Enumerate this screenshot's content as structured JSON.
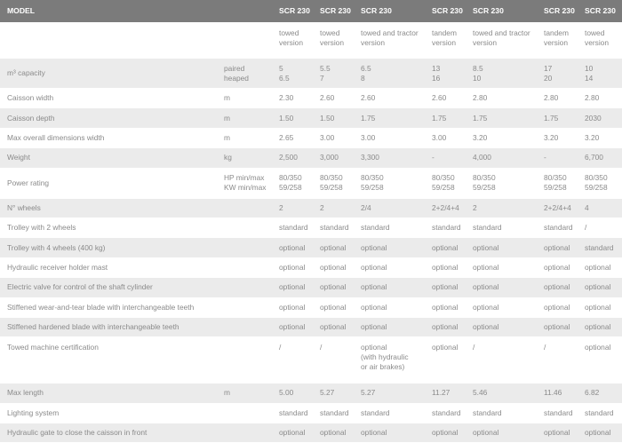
{
  "header": {
    "title": "MODEL",
    "models": [
      "SCR 230",
      "SCR 230",
      "SCR 230",
      "SCR 230",
      "SCR 230",
      "SCR 230",
      "SCR 230"
    ]
  },
  "versions": [
    "towed\nversion",
    "towed\nversion",
    "towed and tractor\nversion",
    "tandem\nversion",
    "towed and tractor\nversion",
    "tandem\nversion",
    "towed\nversion"
  ],
  "rows": [
    {
      "label": "m³ capacity",
      "unit": "paired\nheaped",
      "values": [
        "5\n6.5",
        "5.5\n7",
        "6.5\n8",
        "13\n16",
        "8.5\n10",
        "17\n20",
        "10\n14"
      ]
    },
    {
      "label": "Caisson width",
      "unit": "m",
      "values": [
        "2.30",
        "2.60",
        "2.60",
        "2.60",
        "2.80",
        "2.80",
        "2.80"
      ]
    },
    {
      "label": "Caisson depth",
      "unit": "m",
      "values": [
        "1.50",
        "1.50",
        "1.75",
        "1.75",
        "1.75",
        "1.75",
        "2030"
      ]
    },
    {
      "label": "Max overall dimensions width",
      "unit": "m",
      "values": [
        "2.65",
        "3.00",
        "3.00",
        "3.00",
        "3.20",
        "3.20",
        "3.20"
      ]
    },
    {
      "label": "Weight",
      "unit": "kg",
      "values": [
        "2,500",
        "3,000",
        "3,300",
        "-",
        "4,000",
        "-",
        "6,700"
      ]
    },
    {
      "label": "Power rating",
      "unit": "HP min/max\nKW min/max",
      "values": [
        "80/350\n59/258",
        "80/350\n59/258",
        "80/350\n59/258",
        "80/350\n59/258",
        "80/350\n59/258",
        "80/350\n59/258",
        "80/350\n59/258"
      ]
    },
    {
      "label": "N° wheels",
      "values": [
        "2",
        "2",
        "2/4",
        "2+2/4+4",
        "2",
        "2+2/4+4",
        "4"
      ]
    },
    {
      "label": "Trolley with 2 wheels",
      "values": [
        "standard",
        "standard",
        "standard",
        "standard",
        "standard",
        "standard",
        "/"
      ]
    },
    {
      "label": "Trolley with 4 wheels (400 kg)",
      "values": [
        "optional",
        "optional",
        "optional",
        "optional",
        "optional",
        "optional",
        "standard"
      ]
    },
    {
      "label": "Hydraulic receiver holder mast",
      "values": [
        "optional",
        "optional",
        "optional",
        "optional",
        "optional",
        "optional",
        "optional"
      ]
    },
    {
      "label": "Electric valve for control of the shaft cylinder",
      "values": [
        "optional",
        "optional",
        "optional",
        "optional",
        "optional",
        "optional",
        "optional"
      ]
    },
    {
      "label": "Stiffened wear-and-tear blade with interchangeable teeth",
      "values": [
        "optional",
        "optional",
        "optional",
        "optional",
        "optional",
        "optional",
        "optional"
      ]
    },
    {
      "label": "Stiffened hardened blade with interchangeable teeth",
      "values": [
        "optional",
        "optional",
        "optional",
        "optional",
        "optional",
        "optional",
        "optional"
      ]
    },
    {
      "label": "Towed machine certification",
      "values": [
        "/",
        "/",
        "optional\n(with hydraulic\nor air brakes)",
        "optional",
        "/",
        "/",
        "optional"
      ]
    },
    {
      "label": "Max length",
      "unit": "m",
      "values": [
        "5.00",
        "5.27",
        "5.27",
        "11.27",
        "5.46",
        "11.46",
        "6.82"
      ]
    },
    {
      "label": "Lighting system",
      "values": [
        "standard",
        "standard",
        "standard",
        "standard",
        "standard",
        "standard",
        "standard"
      ]
    },
    {
      "label": "Hydraulic gate to close the caisson in front",
      "values": [
        "optional",
        "optional",
        "optional",
        "optional",
        "optional",
        "optional",
        "optional"
      ]
    }
  ]
}
